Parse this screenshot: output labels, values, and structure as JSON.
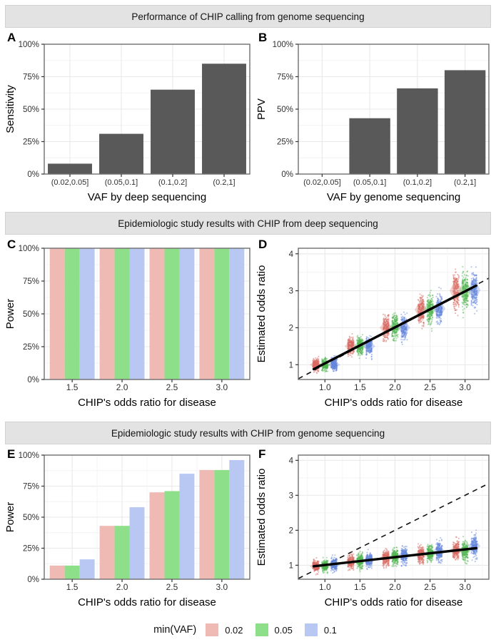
{
  "banners": {
    "top": "Performance of CHIP calling from genome sequencing",
    "middle": "Epidemiologic study results with CHIP from deep sequencing",
    "bottom": "Epidemiologic study results with CHIP from genome sequencing"
  },
  "legend": {
    "title": "min(VAF)",
    "items": [
      {
        "label": "0.02",
        "color": "#EFB9B4"
      },
      {
        "label": "0.05",
        "color": "#8DE089"
      },
      {
        "label": "0.1",
        "color": "#B8C8F3"
      }
    ]
  },
  "colors": {
    "bar_gray": "#595959",
    "panel_border": "#6E6E6E",
    "grid_major": "#E9E9E9",
    "grid_minor": "#F4F4F4",
    "point_red": "#D86A61",
    "point_green": "#50B64F",
    "point_blue": "#6386DC",
    "banner_bg": "#E3E3E3"
  },
  "chart_data": [
    {
      "id": "A",
      "panel_label": "A",
      "type": "bar",
      "ylabel": "Sensitivity",
      "xlabel": "VAF by deep sequencing",
      "categories": [
        "(0.02,0.05]",
        "(0.05,0.1]",
        "(0.1,0.2]",
        "(0.2,1]"
      ],
      "values": [
        8,
        31,
        65,
        85
      ],
      "ylim": [
        0,
        100
      ],
      "yticks": [
        0,
        25,
        50,
        75,
        100
      ],
      "ytick_labels": [
        "0%",
        "25%",
        "50%",
        "75%",
        "100%"
      ],
      "bar_color": "#595959",
      "grid": true
    },
    {
      "id": "B",
      "panel_label": "B",
      "type": "bar",
      "ylabel": "PPV",
      "xlabel": "VAF by genome sequencing",
      "categories": [
        "(0.02,0.05]",
        "(0.05,0.1]",
        "(0.1,0.2]",
        "(0.2,1]"
      ],
      "values": [
        0,
        43,
        66,
        80
      ],
      "ylim": [
        0,
        100
      ],
      "yticks": [
        0,
        25,
        50,
        75,
        100
      ],
      "ytick_labels": [
        "0%",
        "25%",
        "50%",
        "75%",
        "100%"
      ],
      "bar_color": "#595959",
      "grid": true
    },
    {
      "id": "C",
      "panel_label": "C",
      "type": "grouped_bar",
      "ylabel": "Power",
      "xlabel": "CHIP's odds ratio for disease",
      "x": [
        1.5,
        2.0,
        2.5,
        3.0
      ],
      "xtick_labels": [
        "1.5",
        "2.0",
        "2.5",
        "3.0"
      ],
      "xlim": [
        1.22,
        3.28
      ],
      "ylim": [
        0,
        100
      ],
      "yticks": [
        0,
        25,
        50,
        75,
        100
      ],
      "ytick_labels": [
        "0%",
        "25%",
        "50%",
        "75%",
        "100%"
      ],
      "series": [
        {
          "name": "0.02",
          "color": "#EFB9B4",
          "values": [
            100,
            100,
            100,
            100
          ]
        },
        {
          "name": "0.05",
          "color": "#8DE089",
          "values": [
            100,
            100,
            100,
            100
          ]
        },
        {
          "name": "0.1",
          "color": "#B8C8F3",
          "values": [
            100,
            100,
            100,
            100
          ]
        }
      ],
      "grid": true
    },
    {
      "id": "D",
      "panel_label": "D",
      "type": "jitter",
      "ylabel": "Estimated odds ratio",
      "xlabel": "CHIP's odds ratio for disease",
      "x": [
        1.0,
        1.5,
        2.0,
        2.5,
        3.0
      ],
      "xtick_labels": [
        "1.0",
        "1.5",
        "2.0",
        "2.5",
        "3.0"
      ],
      "xlim": [
        0.62,
        3.34
      ],
      "ylim": [
        0.6,
        4.15
      ],
      "yticks": [
        1,
        2,
        3,
        4
      ],
      "ytick_labels": [
        "1",
        "2",
        "3",
        "4"
      ],
      "identity_line": true,
      "fit_line": {
        "x1": 0.84,
        "y1": 0.88,
        "x2": 3.16,
        "y2": 3.14
      },
      "series": [
        {
          "name": "0.02",
          "color": "#D86A61",
          "centers": [
            1.0,
            1.5,
            2.0,
            2.48,
            3.0
          ],
          "sds": [
            0.08,
            0.12,
            0.16,
            0.2,
            0.26
          ]
        },
        {
          "name": "0.05",
          "color": "#50B64F",
          "centers": [
            1.0,
            1.5,
            2.01,
            2.51,
            3.0
          ],
          "sds": [
            0.08,
            0.12,
            0.16,
            0.2,
            0.26
          ]
        },
        {
          "name": "0.1",
          "color": "#6386DC",
          "centers": [
            1.0,
            1.5,
            2.0,
            2.52,
            3.02
          ],
          "sds": [
            0.08,
            0.12,
            0.15,
            0.19,
            0.24
          ]
        }
      ],
      "grid": true
    },
    {
      "id": "E",
      "panel_label": "E",
      "type": "grouped_bar",
      "ylabel": "Power",
      "xlabel": "CHIP's odds ratio for disease",
      "x": [
        1.5,
        2.0,
        2.5,
        3.0
      ],
      "xtick_labels": [
        "1.5",
        "2.0",
        "2.5",
        "3.0"
      ],
      "xlim": [
        1.22,
        3.28
      ],
      "ylim": [
        0,
        100
      ],
      "yticks": [
        0,
        25,
        50,
        75,
        100
      ],
      "ytick_labels": [
        "0%",
        "25%",
        "50%",
        "75%",
        "100%"
      ],
      "series": [
        {
          "name": "0.02",
          "color": "#EFB9B4",
          "values": [
            11,
            43,
            70,
            88
          ]
        },
        {
          "name": "0.05",
          "color": "#8DE089",
          "values": [
            11,
            43,
            71,
            88
          ]
        },
        {
          "name": "0.1",
          "color": "#B8C8F3",
          "values": [
            16,
            58,
            85,
            96
          ]
        }
      ],
      "grid": true
    },
    {
      "id": "F",
      "panel_label": "F",
      "type": "jitter",
      "ylabel": "Estimated odds ratio",
      "xlabel": "CHIP's odds ratio for disease",
      "x": [
        1.0,
        1.5,
        2.0,
        2.5,
        3.0
      ],
      "xtick_labels": [
        "1.0",
        "1.5",
        "2.0",
        "2.5",
        "3.0"
      ],
      "xlim": [
        0.62,
        3.34
      ],
      "ylim": [
        0.6,
        4.15
      ],
      "yticks": [
        1,
        2,
        3,
        4
      ],
      "ytick_labels": [
        "1",
        "2",
        "3",
        "4"
      ],
      "identity_line": true,
      "fit_line": {
        "x1": 0.84,
        "y1": 0.97,
        "x2": 3.16,
        "y2": 1.49
      },
      "series": [
        {
          "name": "0.02",
          "color": "#D86A61",
          "centers": [
            0.97,
            1.1,
            1.21,
            1.31,
            1.42
          ],
          "sds": [
            0.08,
            0.1,
            0.11,
            0.12,
            0.13
          ]
        },
        {
          "name": "0.05",
          "color": "#50B64F",
          "centers": [
            0.98,
            1.12,
            1.24,
            1.33,
            1.43
          ],
          "sds": [
            0.08,
            0.1,
            0.11,
            0.12,
            0.13
          ]
        },
        {
          "name": "0.1",
          "color": "#6386DC",
          "centers": [
            1.02,
            1.15,
            1.28,
            1.4,
            1.55
          ],
          "sds": [
            0.09,
            0.1,
            0.12,
            0.13,
            0.15
          ]
        }
      ],
      "grid": true
    }
  ]
}
